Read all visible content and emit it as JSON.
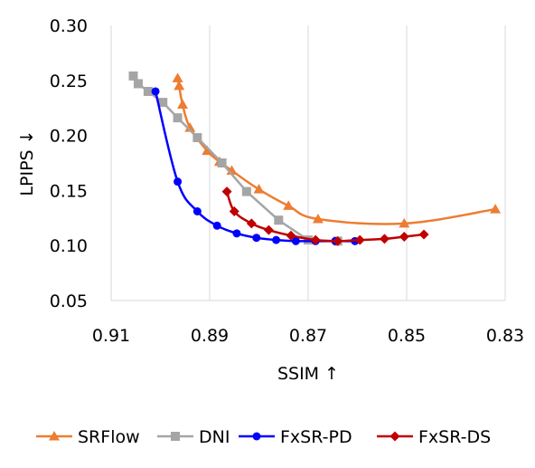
{
  "chart_data": {
    "type": "line",
    "title": "",
    "xlabel": "SSIM ↑",
    "ylabel": "LPIPS ↓",
    "xlim": [
      0.91,
      0.83
    ],
    "ylim": [
      0.05,
      0.3
    ],
    "x_reversed": true,
    "x_ticks": [
      "0.91",
      "0.89",
      "0.87",
      "0.85",
      "0.83"
    ],
    "y_ticks": [
      "0.05",
      "0.10",
      "0.15",
      "0.20",
      "0.25",
      "0.30"
    ],
    "grid": "vertical",
    "legend": "bottom",
    "series": [
      {
        "name": "SRFlow",
        "color": "#ED7D31",
        "marker": "triangle",
        "smooth": true,
        "x": [
          0.8965,
          0.8962,
          0.8955,
          0.894,
          0.8905,
          0.888,
          0.8855,
          0.88,
          0.874,
          0.868,
          0.8505,
          0.832
        ],
        "y": [
          0.252,
          0.245,
          0.228,
          0.207,
          0.186,
          0.176,
          0.168,
          0.151,
          0.136,
          0.124,
          0.12,
          0.133
        ]
      },
      {
        "name": "DNI",
        "color": "#A5A5A5",
        "marker": "square",
        "smooth": false,
        "x": [
          0.9055,
          0.9045,
          0.9025,
          0.8995,
          0.8965,
          0.8925,
          0.8875,
          0.8825,
          0.876,
          0.87,
          0.864
        ],
        "y": [
          0.254,
          0.247,
          0.24,
          0.23,
          0.216,
          0.198,
          0.175,
          0.149,
          0.123,
          0.105,
          0.104
        ]
      },
      {
        "name": "FxSR-PD",
        "color": "#0000FF",
        "marker": "circle",
        "smooth": true,
        "x": [
          0.901,
          0.8965,
          0.8925,
          0.8885,
          0.8845,
          0.8805,
          0.8765,
          0.8725,
          0.8685,
          0.8645,
          0.8605
        ],
        "y": [
          0.24,
          0.158,
          0.131,
          0.118,
          0.111,
          0.107,
          0.105,
          0.104,
          0.104,
          0.104,
          0.104
        ]
      },
      {
        "name": "FxSR-DS",
        "color": "#C00000",
        "marker": "diamond",
        "smooth": true,
        "x": [
          0.8865,
          0.885,
          0.8815,
          0.878,
          0.8735,
          0.8685,
          0.864,
          0.8595,
          0.8545,
          0.8505,
          0.8465
        ],
        "y": [
          0.149,
          0.131,
          0.12,
          0.114,
          0.109,
          0.105,
          0.104,
          0.105,
          0.106,
          0.108,
          0.11
        ]
      }
    ]
  }
}
